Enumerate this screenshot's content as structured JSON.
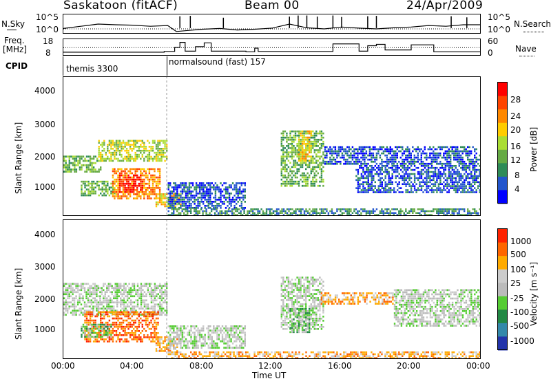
{
  "header": {
    "station": "Saskatoon (fitACF)",
    "beam": "Beam 00",
    "date": "24/Apr/2009"
  },
  "noise_panel": {
    "left_label": "N.Sky",
    "right_label": "N.Search",
    "left_ticks": [
      "10^5",
      "10^0"
    ],
    "right_ticks": [
      "10^5",
      "10^0"
    ]
  },
  "freq_panel": {
    "left_label_1": "Freq.",
    "left_label_2": "[MHz]",
    "right_label": "Nave",
    "left_ticks": [
      "18",
      "8"
    ],
    "right_ticks": [
      "60",
      "0"
    ]
  },
  "cpid_panel": {
    "label": "CPID",
    "modes": [
      {
        "name": "themis 3300",
        "start_hour": 0
      },
      {
        "name": "normalsound (fast) 157",
        "start_hour": 6
      }
    ]
  },
  "x_axis": {
    "label": "Time UT",
    "ticks": [
      "00:00",
      "04:00",
      "08:00",
      "12:00",
      "16:00",
      "20:00",
      "00:00"
    ]
  },
  "power_panel": {
    "ylabel": "Slant Range [km]",
    "yticks": [
      "4000",
      "3000",
      "2000",
      "1000"
    ],
    "colorbar_label": "Power [dB]",
    "colorbar_ticks": [
      "28",
      "24",
      "20",
      "16",
      "12",
      "8",
      "4"
    ],
    "colors": [
      "#0000ff",
      "#2255cc",
      "#2e8b57",
      "#66aa44",
      "#aadd33",
      "#ffcc00",
      "#ff8800",
      "#ff4400",
      "#ff0000"
    ]
  },
  "velocity_panel": {
    "ylabel": "Slant Range [km]",
    "yticks": [
      "4000",
      "3000",
      "2000",
      "1000"
    ],
    "colorbar_label": "Velocity [m s⁻¹]",
    "colorbar_ticks": [
      "1000",
      "500",
      "100",
      "25",
      "-25",
      "-100",
      "-500",
      "-1000"
    ],
    "colors": [
      "#2233aa",
      "#3388aa",
      "#228844",
      "#55cc33",
      "#bbbbbb",
      "#cccccc",
      "#ffaa00",
      "#ff6600",
      "#ff2200"
    ]
  },
  "chart_data": {
    "type": "heatmap",
    "title": "Saskatoon (fitACF) Beam 00 24/Apr/2009",
    "xlabel": "Time UT",
    "ylabel": "Slant Range [km]",
    "xlim": [
      0,
      24
    ],
    "ylim": [
      180,
      4600
    ],
    "power_regions": [
      {
        "t0": 0.0,
        "t1": 2.2,
        "r0": 1550,
        "r1": 2100,
        "level": 3
      },
      {
        "t0": 2.0,
        "t1": 6.0,
        "r0": 1900,
        "r1": 2600,
        "level": 4
      },
      {
        "t0": 1.0,
        "t1": 3.0,
        "r0": 800,
        "r1": 1300,
        "level": 3
      },
      {
        "t0": 2.8,
        "t1": 5.6,
        "r0": 700,
        "r1": 1700,
        "level": 6
      },
      {
        "t0": 3.2,
        "t1": 4.6,
        "r0": 900,
        "r1": 1500,
        "level": 8
      },
      {
        "t0": 5.3,
        "t1": 6.8,
        "r0": 450,
        "r1": 900,
        "level": 5
      },
      {
        "t0": 6.0,
        "t1": 10.5,
        "r0": 400,
        "r1": 1250,
        "level": 1
      },
      {
        "t0": 12.5,
        "t1": 15.0,
        "r0": 1100,
        "r1": 2900,
        "level": 3
      },
      {
        "t0": 13.5,
        "t1": 14.3,
        "r0": 1900,
        "r1": 2900,
        "level": 5
      },
      {
        "t0": 15.0,
        "t1": 24.0,
        "r0": 1800,
        "r1": 2400,
        "level": 1
      },
      {
        "t0": 16.8,
        "t1": 24.0,
        "r0": 900,
        "r1": 1800,
        "level": 1
      },
      {
        "t0": 6.0,
        "t1": 24.0,
        "r0": 180,
        "r1": 420,
        "level": 2
      }
    ],
    "velocity_regions": [
      {
        "t0": 0.0,
        "t1": 6.0,
        "r0": 1550,
        "r1": 2600,
        "level": 4
      },
      {
        "t0": 1.2,
        "t1": 5.5,
        "r0": 700,
        "r1": 1700,
        "level": 7
      },
      {
        "t0": 1.0,
        "t1": 2.8,
        "r0": 850,
        "r1": 1300,
        "level": 3
      },
      {
        "t0": 5.3,
        "t1": 6.6,
        "r0": 400,
        "r1": 900,
        "level": 6
      },
      {
        "t0": 6.0,
        "t1": 10.5,
        "r0": 500,
        "r1": 1250,
        "level": 4
      },
      {
        "t0": 12.5,
        "t1": 15.0,
        "r0": 1100,
        "r1": 2800,
        "level": 4
      },
      {
        "t0": 13.0,
        "t1": 14.2,
        "r0": 1000,
        "r1": 1800,
        "level": 3
      },
      {
        "t0": 14.8,
        "t1": 19.0,
        "r0": 1900,
        "r1": 2300,
        "level": 6
      },
      {
        "t0": 19.0,
        "t1": 24.0,
        "r0": 1200,
        "r1": 2400,
        "level": 4
      },
      {
        "t0": 6.0,
        "t1": 24.0,
        "r0": 180,
        "r1": 420,
        "level": 6
      }
    ],
    "noise_sky_log": [
      [
        0,
        1.4
      ],
      [
        1,
        2.0
      ],
      [
        2,
        2.6
      ],
      [
        3,
        2.4
      ],
      [
        4,
        2.3
      ],
      [
        5,
        2.0
      ],
      [
        6,
        2.2
      ],
      [
        6.5,
        0.6
      ],
      [
        7,
        0.8
      ],
      [
        8,
        1.2
      ],
      [
        9,
        1.4
      ],
      [
        10,
        1.0
      ],
      [
        11,
        1.2
      ],
      [
        12,
        1.5
      ],
      [
        13,
        2.6
      ],
      [
        14,
        1.6
      ],
      [
        15,
        1.3
      ],
      [
        16,
        1.8
      ],
      [
        17,
        1.5
      ],
      [
        18,
        1.3
      ],
      [
        19,
        1.6
      ],
      [
        20,
        1.8
      ],
      [
        21,
        2.2
      ],
      [
        22,
        2.0
      ],
      [
        23,
        2.4
      ],
      [
        24,
        2.4
      ]
    ],
    "noise_spikes": [
      [
        6.7,
        4.7
      ],
      [
        7.3,
        4.8
      ],
      [
        9.2,
        4.3
      ],
      [
        13.0,
        4.6
      ],
      [
        13.5,
        4.9
      ],
      [
        14.0,
        4.9
      ],
      [
        14.6,
        4.6
      ],
      [
        15.5,
        4.9
      ],
      [
        16.0,
        4.5
      ],
      [
        17.5,
        4.7
      ],
      [
        18.0,
        4.8
      ],
      [
        22.3,
        4.7
      ],
      [
        23.2,
        4.4
      ]
    ],
    "frequency_mhz": [
      [
        0,
        10.3
      ],
      [
        5.8,
        10.3
      ],
      [
        5.8,
        10.8
      ],
      [
        6.4,
        10.8
      ],
      [
        6.4,
        13.5
      ],
      [
        6.7,
        13.5
      ],
      [
        6.7,
        16.8
      ],
      [
        7.0,
        16.8
      ],
      [
        7.0,
        11.0
      ],
      [
        7.6,
        11.0
      ],
      [
        7.6,
        14.0
      ],
      [
        8.1,
        14.0
      ],
      [
        8.1,
        16.5
      ],
      [
        8.5,
        16.5
      ],
      [
        8.5,
        11.0
      ],
      [
        10.5,
        11.0
      ],
      [
        10.5,
        10.6
      ],
      [
        11.0,
        10.6
      ],
      [
        11.0,
        13.0
      ],
      [
        11.2,
        13.0
      ],
      [
        11.2,
        10.8
      ],
      [
        15.5,
        10.8
      ],
      [
        15.5,
        15.8
      ],
      [
        17.0,
        15.8
      ],
      [
        17.0,
        11.0
      ],
      [
        17.5,
        11.0
      ],
      [
        17.5,
        14.6
      ],
      [
        18.0,
        14.6
      ],
      [
        18.0,
        15.5
      ],
      [
        18.5,
        15.5
      ],
      [
        18.5,
        11.8
      ],
      [
        20.0,
        11.8
      ],
      [
        20.0,
        15.2
      ],
      [
        21.3,
        15.2
      ],
      [
        21.3,
        10.6
      ],
      [
        24.0,
        10.6
      ]
    ],
    "nave_dotted": 32,
    "time_axis_hours": [
      0,
      4,
      8,
      12,
      16,
      20,
      24
    ]
  }
}
